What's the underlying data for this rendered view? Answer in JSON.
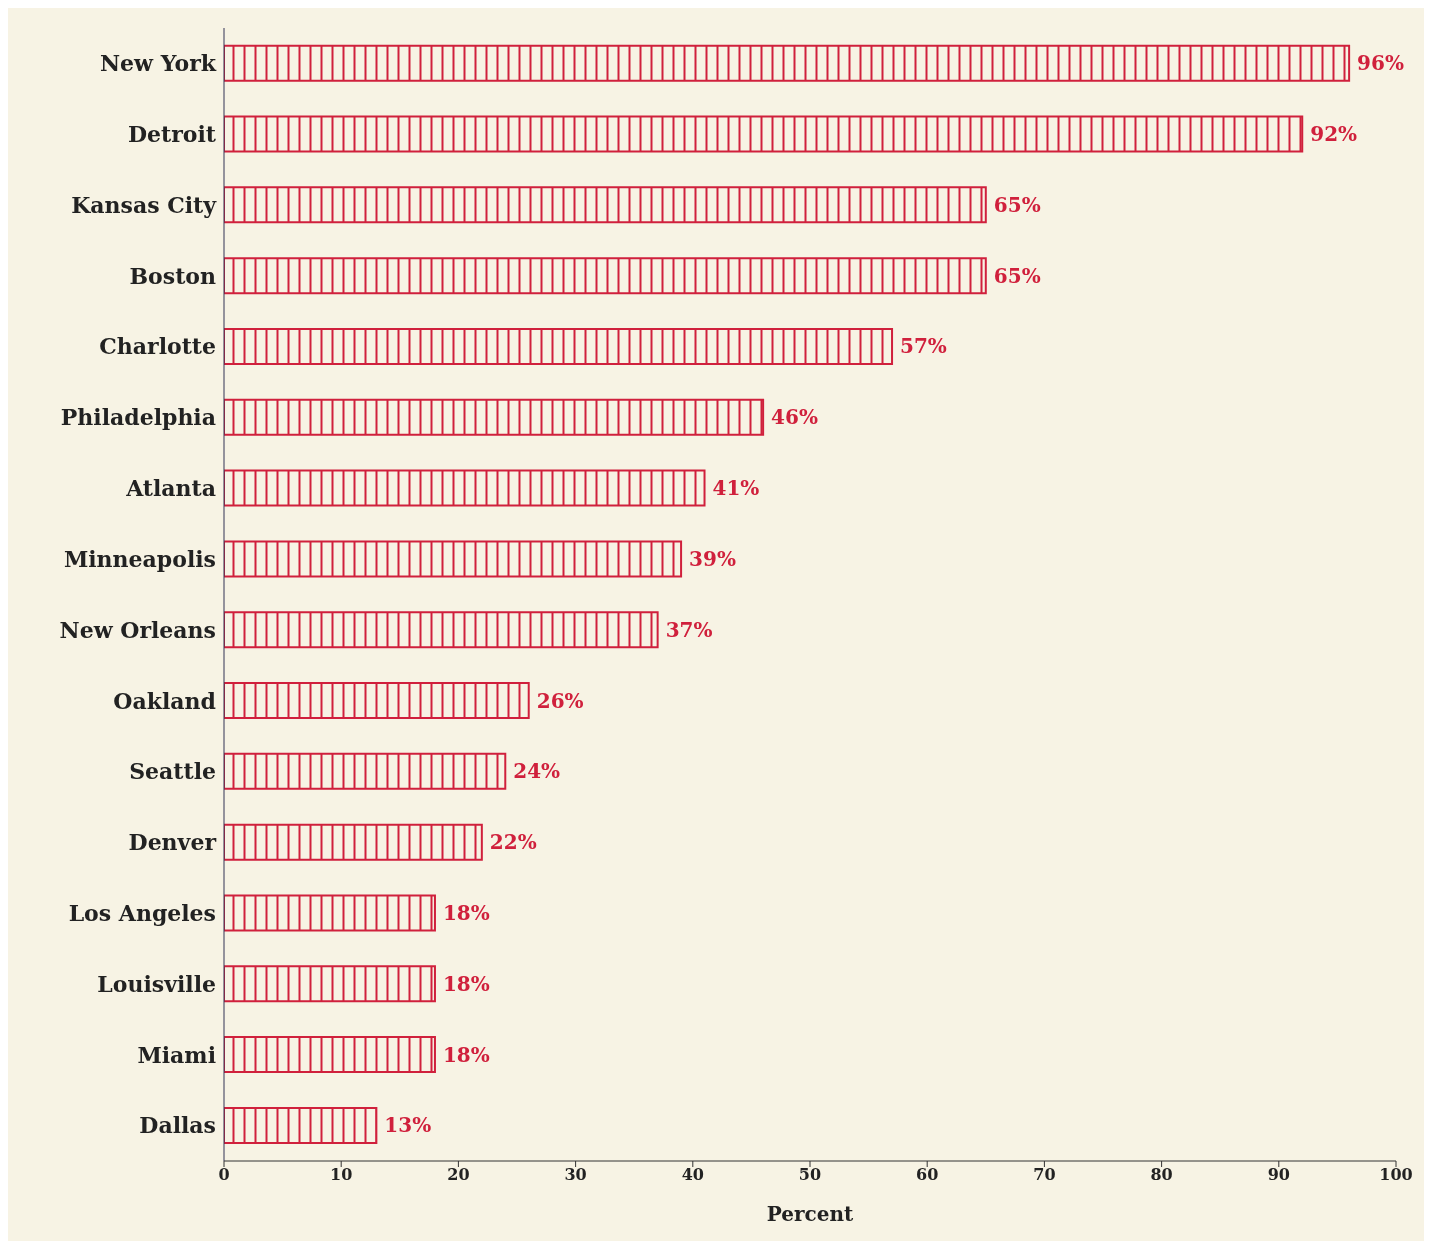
{
  "chart_data": {
    "type": "bar",
    "orientation": "horizontal",
    "xlabel": "Percent",
    "categories": [
      "New York",
      "Detroit",
      "Kansas City",
      "Boston",
      "Charlotte",
      "Philadelphia",
      "Atlanta",
      "Minneapolis",
      "New Orleans",
      "Oakland",
      "Seattle",
      "Denver",
      "Los Angeles",
      "Louisville",
      "Miami",
      "Dallas"
    ],
    "values": [
      96,
      92,
      65,
      65,
      57,
      46,
      41,
      39,
      37,
      26,
      24,
      22,
      18,
      18,
      18,
      13
    ],
    "value_labels": [
      "96%",
      "92%",
      "65%",
      "65%",
      "57%",
      "46%",
      "41%",
      "39%",
      "37%",
      "26%",
      "24%",
      "22%",
      "18%",
      "18%",
      "18%",
      "13%"
    ],
    "color": "#d0203c",
    "xlim": [
      0,
      100
    ],
    "xticks": [
      0,
      10,
      20,
      30,
      40,
      50,
      60,
      70,
      80,
      90,
      100
    ]
  }
}
